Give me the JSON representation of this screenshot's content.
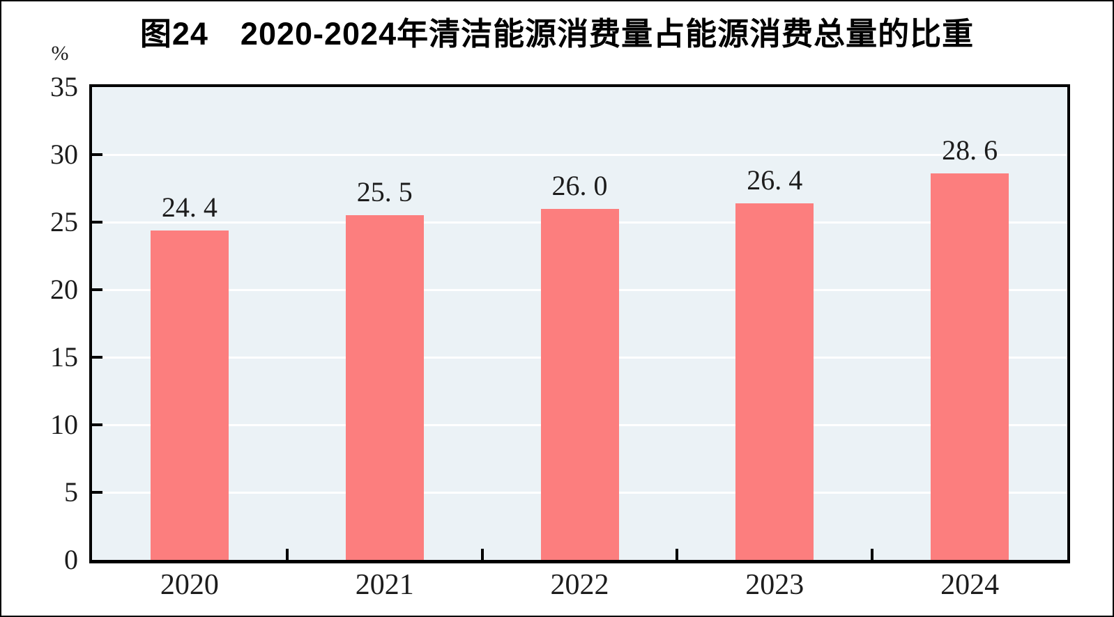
{
  "figure": {
    "title": "图24　2020-2024年清洁能源消费量占能源消费总量的比重",
    "unit_label": "%"
  },
  "chart_data": {
    "type": "bar",
    "title": "图24　2020-2024年清洁能源消费量占能源消费总量的比重",
    "ylabel": "%",
    "xlabel": "",
    "categories": [
      "2020",
      "2021",
      "2022",
      "2023",
      "2024"
    ],
    "values": [
      24.4,
      25.5,
      26.0,
      26.4,
      28.6
    ],
    "value_labels": [
      "24. 4",
      "25. 5",
      "26. 0",
      "26. 4",
      "28. 6"
    ],
    "ylim": [
      0,
      35
    ],
    "yticks": [
      0,
      5,
      10,
      15,
      20,
      25,
      30,
      35
    ],
    "grid": "horizontal-white-gridlines",
    "legend": "none",
    "colors": {
      "bar": "#FC7E7E",
      "plot_background": "#EBF2F6",
      "gridline": "#FFFFFF",
      "axis": "#000000",
      "text": "#1C1C1C"
    }
  }
}
